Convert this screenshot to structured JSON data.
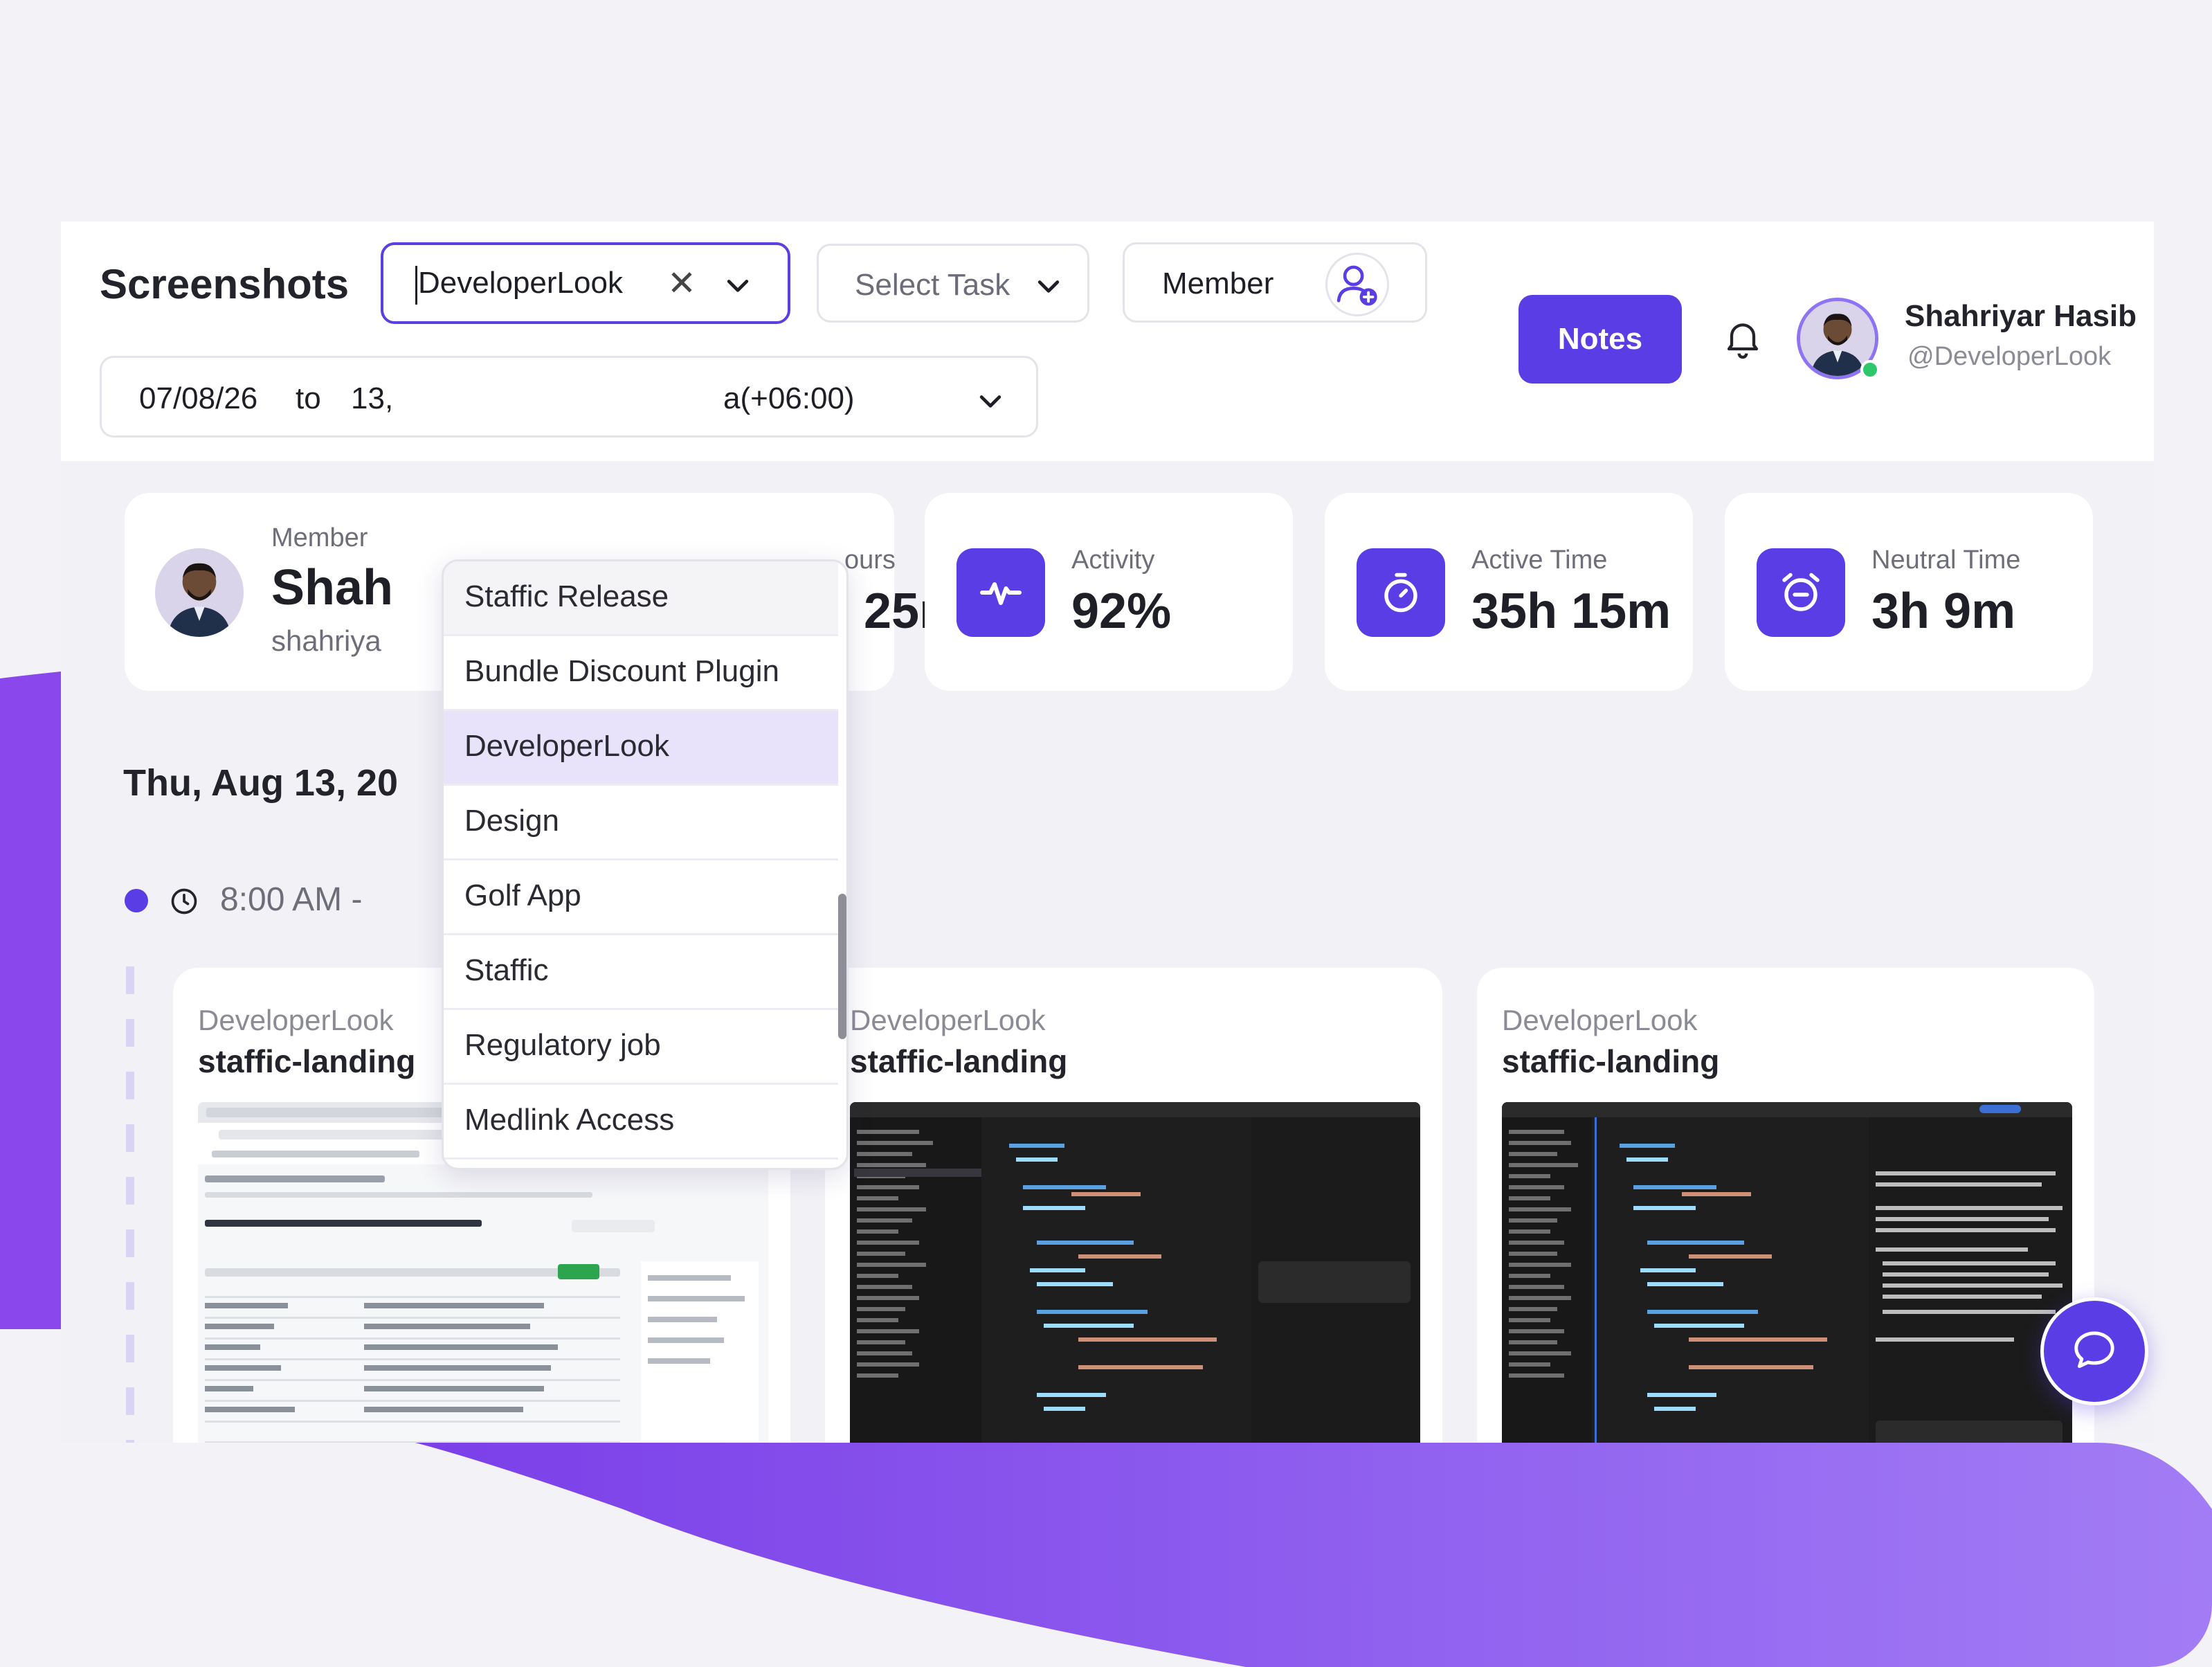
{
  "header": {
    "title": "Screenshots",
    "project_select": {
      "value": "DeveloperLook"
    },
    "task_select": {
      "placeholder": "Select Task"
    },
    "member_select": {
      "label": "Member"
    },
    "date_range": {
      "from": "07/08/26",
      "to_label": "to",
      "to_partial": "13,",
      "timezone_partial": "a(+06:00)"
    },
    "notes_label": "Notes",
    "user": {
      "name": "Shahriyar Hasib",
      "handle": "@DeveloperLook"
    }
  },
  "stats": {
    "member": {
      "label": "Member",
      "name_partial": "Shah",
      "handle_partial": "shahriya"
    },
    "hours": {
      "label_partial": "ours",
      "value_partial": "25m"
    },
    "activity": {
      "label": "Activity",
      "value": "92%"
    },
    "active_time": {
      "label": "Active Time",
      "value": "35h 15m"
    },
    "neutral_time": {
      "label": "Neutral Time",
      "value": "3h 9m"
    }
  },
  "timeline": {
    "date_partial": "Thu, Aug 13, 20",
    "time_partial": "8:00 AM -"
  },
  "screenshots": [
    {
      "project": "DeveloperLook",
      "task": "staffic-landing"
    },
    {
      "project": "DeveloperLook",
      "task": "staffic-landing"
    },
    {
      "project": "DeveloperLook",
      "task": "staffic-landing"
    }
  ],
  "dropdown_options": [
    "Staffic Release",
    "Bundle Discount Plugin",
    "DeveloperLook",
    "Design",
    "Golf App",
    "Staffic",
    "Regulatory job",
    "Medlink Access"
  ],
  "colors": {
    "accent": "#5a3de4",
    "wave": "#8a5cf0",
    "online": "#2ec76b"
  }
}
